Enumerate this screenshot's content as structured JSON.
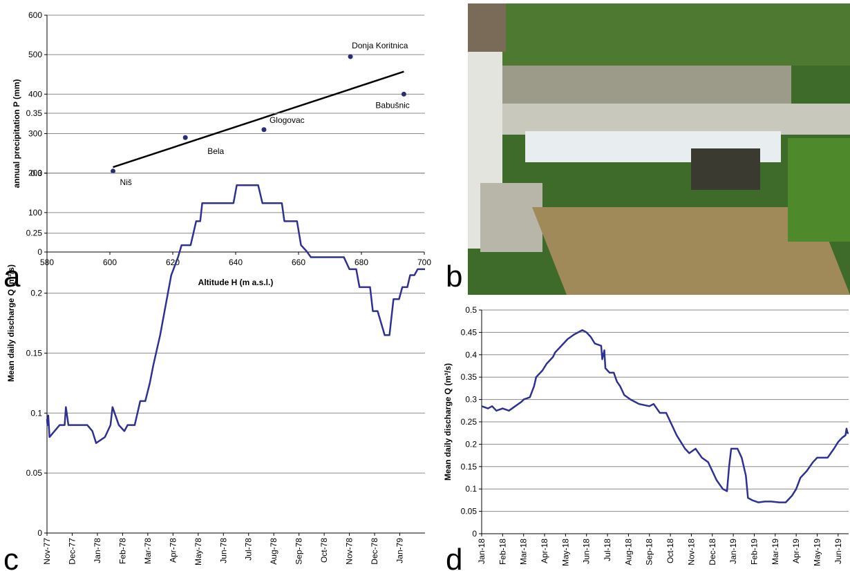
{
  "chart_data": [
    {
      "type": "scatter",
      "panel_label": "a",
      "x_label": "Altitude H (m a.s.l.)",
      "y_label": "annual precipitation P (mm)",
      "points": {
        "x": [
          601,
          624,
          649,
          676.5,
          693.5
        ],
        "y": [
          205,
          290,
          310,
          495,
          400
        ],
        "labels": [
          "Niš",
          "Bela",
          "Glogovac",
          "Donja Koritnica",
          "Babušnic"
        ],
        "color": "#2b2b7a"
      },
      "trendline": {
        "x": [
          601,
          693.5
        ],
        "y": [
          215,
          457
        ],
        "color": "#000000"
      },
      "xlim": [
        580,
        700
      ],
      "xticks": [
        580,
        600,
        620,
        640,
        660,
        680,
        700
      ],
      "ylim": [
        0,
        600
      ],
      "yticks": [
        0,
        100,
        200,
        300,
        400,
        500,
        600
      ],
      "grid": true
    },
    {
      "type": "line",
      "panel_label": "c",
      "y_label": "Mean daily discharge Q (m³/s)",
      "color": "#2e3192",
      "x": [
        0,
        0.02,
        0.05,
        0.1,
        0.5,
        0.7,
        0.75,
        0.85,
        1.6,
        1.8,
        1.95,
        2.3,
        2.52,
        2.6,
        2.85,
        3.07,
        3.2,
        3.48,
        3.7,
        3.9,
        4.08,
        4.22,
        4.49,
        4.71,
        4.93,
        5.2,
        5.34,
        5.7,
        5.81,
        5.92,
        6.08,
        6.16,
        7.4,
        7.53,
        8.38,
        8.55,
        9.32,
        9.42,
        9.92,
        10.08,
        10.3,
        10.47,
        11.78,
        12.0,
        12.27,
        12.4,
        12.82,
        12.93,
        13.12,
        13.4,
        13.59,
        13.75,
        13.97,
        14.1,
        14.3,
        14.41,
        14.58,
        14.71,
        15.0
      ],
      "values": [
        0.095,
        0.09,
        0.098,
        0.08,
        0.09,
        0.09,
        0.105,
        0.09,
        0.09,
        0.085,
        0.075,
        0.08,
        0.09,
        0.105,
        0.09,
        0.085,
        0.09,
        0.09,
        0.11,
        0.11,
        0.125,
        0.14,
        0.165,
        0.19,
        0.215,
        0.23,
        0.24,
        0.24,
        0.25,
        0.26,
        0.26,
        0.275,
        0.275,
        0.29,
        0.29,
        0.275,
        0.275,
        0.26,
        0.26,
        0.24,
        0.235,
        0.23,
        0.23,
        0.22,
        0.22,
        0.205,
        0.205,
        0.185,
        0.185,
        0.165,
        0.165,
        0.195,
        0.195,
        0.205,
        0.205,
        0.215,
        0.215,
        0.22,
        0.22
      ],
      "xlim": [
        0,
        15
      ],
      "xticks": [
        {
          "value": 0,
          "label": "Nov-77"
        },
        {
          "value": 1,
          "label": "Dec-77"
        },
        {
          "value": 2,
          "label": "Jan-78"
        },
        {
          "value": 3,
          "label": "Feb-78"
        },
        {
          "value": 4,
          "label": "Mar-78"
        },
        {
          "value": 5,
          "label": "Apr-78"
        },
        {
          "value": 6,
          "label": "May-78"
        },
        {
          "value": 7,
          "label": "Jun-78"
        },
        {
          "value": 8,
          "label": "Jul-78"
        },
        {
          "value": 9,
          "label": "Aug-78"
        },
        {
          "value": 10,
          "label": "Sep-78"
        },
        {
          "value": 11,
          "label": "Oct-78"
        },
        {
          "value": 12,
          "label": "Nov-78"
        },
        {
          "value": 13,
          "label": "Dec-78"
        },
        {
          "value": 14,
          "label": "Jan-79"
        }
      ],
      "ylim": [
        0,
        0.35
      ],
      "yticks": [
        0,
        0.05,
        0.1,
        0.15,
        0.2,
        0.25,
        0.3,
        0.35
      ],
      "grid": true
    },
    {
      "type": "line",
      "panel_label": "d",
      "y_label": "Mean daily discharge Q (m³/s)",
      "color": "#2e3192",
      "x": [
        0,
        0.3,
        0.5,
        0.7,
        1.0,
        1.3,
        1.6,
        1.9,
        2.0,
        2.3,
        2.5,
        2.6,
        2.9,
        3.1,
        3.4,
        3.5,
        3.8,
        4.1,
        4.4,
        4.6,
        4.8,
        5.0,
        5.2,
        5.4,
        5.7,
        5.75,
        5.85,
        5.9,
        6.1,
        6.3,
        6.45,
        6.6,
        6.8,
        7.1,
        7.5,
        8.0,
        8.2,
        8.5,
        8.8,
        9.0,
        9.3,
        9.5,
        9.7,
        9.9,
        10.2,
        10.5,
        10.8,
        11.0,
        11.2,
        11.5,
        11.7,
        11.8,
        11.9,
        12.2,
        12.4,
        12.6,
        12.7,
        12.9,
        13.2,
        13.5,
        13.8,
        14.2,
        14.5,
        14.8,
        15.0,
        15.2,
        15.5,
        15.8,
        16.0,
        16.3,
        16.5,
        16.8,
        17.0,
        17.2,
        17.35,
        17.4,
        17.45,
        17.5
      ],
      "values": [
        0.285,
        0.28,
        0.285,
        0.275,
        0.28,
        0.275,
        0.285,
        0.295,
        0.3,
        0.305,
        0.33,
        0.35,
        0.365,
        0.38,
        0.395,
        0.405,
        0.42,
        0.435,
        0.445,
        0.45,
        0.455,
        0.45,
        0.44,
        0.425,
        0.42,
        0.39,
        0.41,
        0.37,
        0.36,
        0.36,
        0.34,
        0.33,
        0.31,
        0.3,
        0.29,
        0.285,
        0.29,
        0.27,
        0.27,
        0.25,
        0.22,
        0.205,
        0.19,
        0.18,
        0.19,
        0.17,
        0.16,
        0.14,
        0.12,
        0.1,
        0.095,
        0.15,
        0.19,
        0.19,
        0.17,
        0.13,
        0.08,
        0.075,
        0.07,
        0.072,
        0.072,
        0.07,
        0.07,
        0.085,
        0.1,
        0.125,
        0.14,
        0.16,
        0.17,
        0.17,
        0.17,
        0.19,
        0.205,
        0.215,
        0.22,
        0.235,
        0.225,
        0.225
      ],
      "xlim": [
        0,
        17.5
      ],
      "xticks": [
        {
          "value": 0,
          "label": "Jan-18"
        },
        {
          "value": 1,
          "label": "Feb-18"
        },
        {
          "value": 2,
          "label": "Mar-18"
        },
        {
          "value": 3,
          "label": "Apr-18"
        },
        {
          "value": 4,
          "label": "May-18"
        },
        {
          "value": 5,
          "label": "Jun-18"
        },
        {
          "value": 6,
          "label": "Jul-18"
        },
        {
          "value": 7,
          "label": "Aug-18"
        },
        {
          "value": 8,
          "label": "Sep-18"
        },
        {
          "value": 9,
          "label": "Oct-18"
        },
        {
          "value": 10,
          "label": "Nov-18"
        },
        {
          "value": 11,
          "label": "Dec-18"
        },
        {
          "value": 12,
          "label": "Jan-19"
        },
        {
          "value": 13,
          "label": "Feb-19"
        },
        {
          "value": 14,
          "label": "Mar-19"
        },
        {
          "value": 15,
          "label": "Apr-19"
        },
        {
          "value": 16,
          "label": "May-19"
        },
        {
          "value": 17,
          "label": "Jun-19"
        }
      ],
      "ylim": [
        0,
        0.5
      ],
      "yticks": [
        0,
        0.05,
        0.1,
        0.15,
        0.2,
        0.25,
        0.3,
        0.35,
        0.4,
        0.45,
        0.5
      ],
      "grid": true
    }
  ],
  "photo": {
    "panel_label": "b"
  }
}
